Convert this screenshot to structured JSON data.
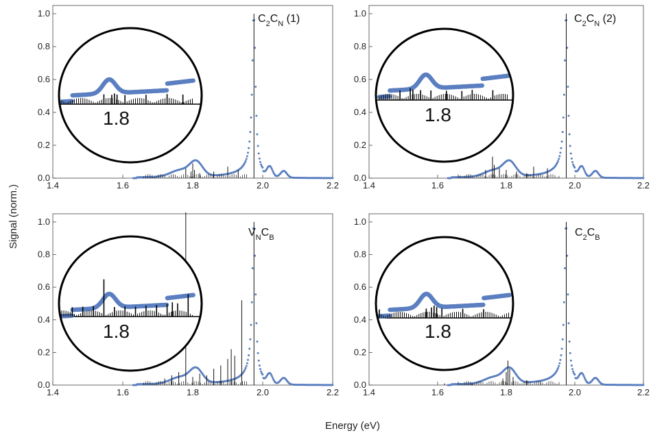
{
  "figure": {
    "xlabel": "Energy (eV)",
    "ylabel": "Signal (norm.)"
  },
  "colors": {
    "experiment": "#5b7fc0",
    "stick": "#111111",
    "frame": "#000000"
  },
  "chart_data": [
    {
      "type": "scatter",
      "id": "p1",
      "label": {
        "base1": "C",
        "sub1": "2",
        "base2": "C",
        "sub2": "N",
        "suffix": " (1)"
      },
      "xlim": [
        1.4,
        2.2
      ],
      "ylim": [
        0.0,
        1.05
      ],
      "xticks": [
        "1.4",
        "1.6",
        "1.8",
        "2.0",
        "2.2"
      ],
      "yticks": [
        "0.0",
        "0.2",
        "0.4",
        "0.6",
        "0.8",
        "1.0"
      ],
      "inset_label": "1.8",
      "sticks": [
        [
          1.78,
          0.06
        ],
        [
          1.795,
          0.04
        ],
        [
          1.8,
          0.09
        ],
        [
          1.805,
          0.05
        ],
        [
          1.82,
          0.03
        ],
        [
          1.86,
          0.04
        ],
        [
          1.9,
          0.07
        ],
        [
          1.93,
          0.05
        ],
        [
          1.975,
          1.0
        ]
      ]
    },
    {
      "type": "scatter",
      "id": "p2",
      "label": {
        "base1": "C",
        "sub1": "2",
        "base2": "C",
        "sub2": "N",
        "suffix": " (2)"
      },
      "xlim": [
        1.4,
        2.2
      ],
      "ylim": [
        0.0,
        1.05
      ],
      "xticks": [
        "1.4",
        "1.6",
        "1.8",
        "2.0",
        "2.2"
      ],
      "yticks": [
        "0.0",
        "0.2",
        "0.4",
        "0.6",
        "0.8",
        "1.0"
      ],
      "inset_label": "1.8",
      "sticks": [
        [
          1.74,
          0.05
        ],
        [
          1.76,
          0.13
        ],
        [
          1.765,
          0.08
        ],
        [
          1.78,
          0.06
        ],
        [
          1.8,
          0.05
        ],
        [
          1.83,
          0.04
        ],
        [
          1.86,
          0.03
        ],
        [
          1.88,
          0.07
        ],
        [
          1.92,
          0.06
        ],
        [
          1.975,
          1.0
        ]
      ]
    },
    {
      "type": "scatter",
      "id": "p3",
      "label": {
        "base1": "V",
        "sub1": "N",
        "base2": "C",
        "sub2": "B",
        "suffix": ""
      },
      "xlim": [
        1.4,
        2.2
      ],
      "ylim": [
        0.0,
        1.05
      ],
      "xticks": [
        "1.4",
        "1.6",
        "1.8",
        "2.0",
        "2.2"
      ],
      "yticks": [
        "0.0",
        "0.2",
        "0.4",
        "0.6",
        "0.8",
        "1.0"
      ],
      "inset_label": "1.8",
      "sticks": [
        [
          1.72,
          0.04
        ],
        [
          1.74,
          0.06
        ],
        [
          1.76,
          0.08
        ],
        [
          1.78,
          1.06
        ],
        [
          1.8,
          0.05
        ],
        [
          1.82,
          0.07
        ],
        [
          1.84,
          0.06
        ],
        [
          1.86,
          0.1
        ],
        [
          1.88,
          0.12
        ],
        [
          1.9,
          0.16
        ],
        [
          1.91,
          0.22
        ],
        [
          1.92,
          0.18
        ],
        [
          1.94,
          0.52
        ],
        [
          1.975,
          1.0
        ]
      ]
    },
    {
      "type": "scatter",
      "id": "p4",
      "label": {
        "base1": "C",
        "sub1": "2",
        "base2": "C",
        "sub2": "B",
        "suffix": ""
      },
      "xlim": [
        1.4,
        2.2
      ],
      "ylim": [
        0.0,
        1.05
      ],
      "xticks": [
        "1.4",
        "1.6",
        "1.8",
        "2.0",
        "2.2"
      ],
      "yticks": [
        "0.0",
        "0.2",
        "0.4",
        "0.6",
        "0.8",
        "1.0"
      ],
      "inset_label": "1.8",
      "sticks": [
        [
          1.62,
          0.01
        ],
        [
          1.7,
          0.01
        ],
        [
          1.79,
          0.04
        ],
        [
          1.8,
          0.08
        ],
        [
          1.805,
          0.15
        ],
        [
          1.81,
          0.1
        ],
        [
          1.82,
          0.05
        ],
        [
          1.86,
          0.03
        ],
        [
          1.9,
          0.02
        ],
        [
          1.975,
          1.0
        ]
      ]
    }
  ]
}
